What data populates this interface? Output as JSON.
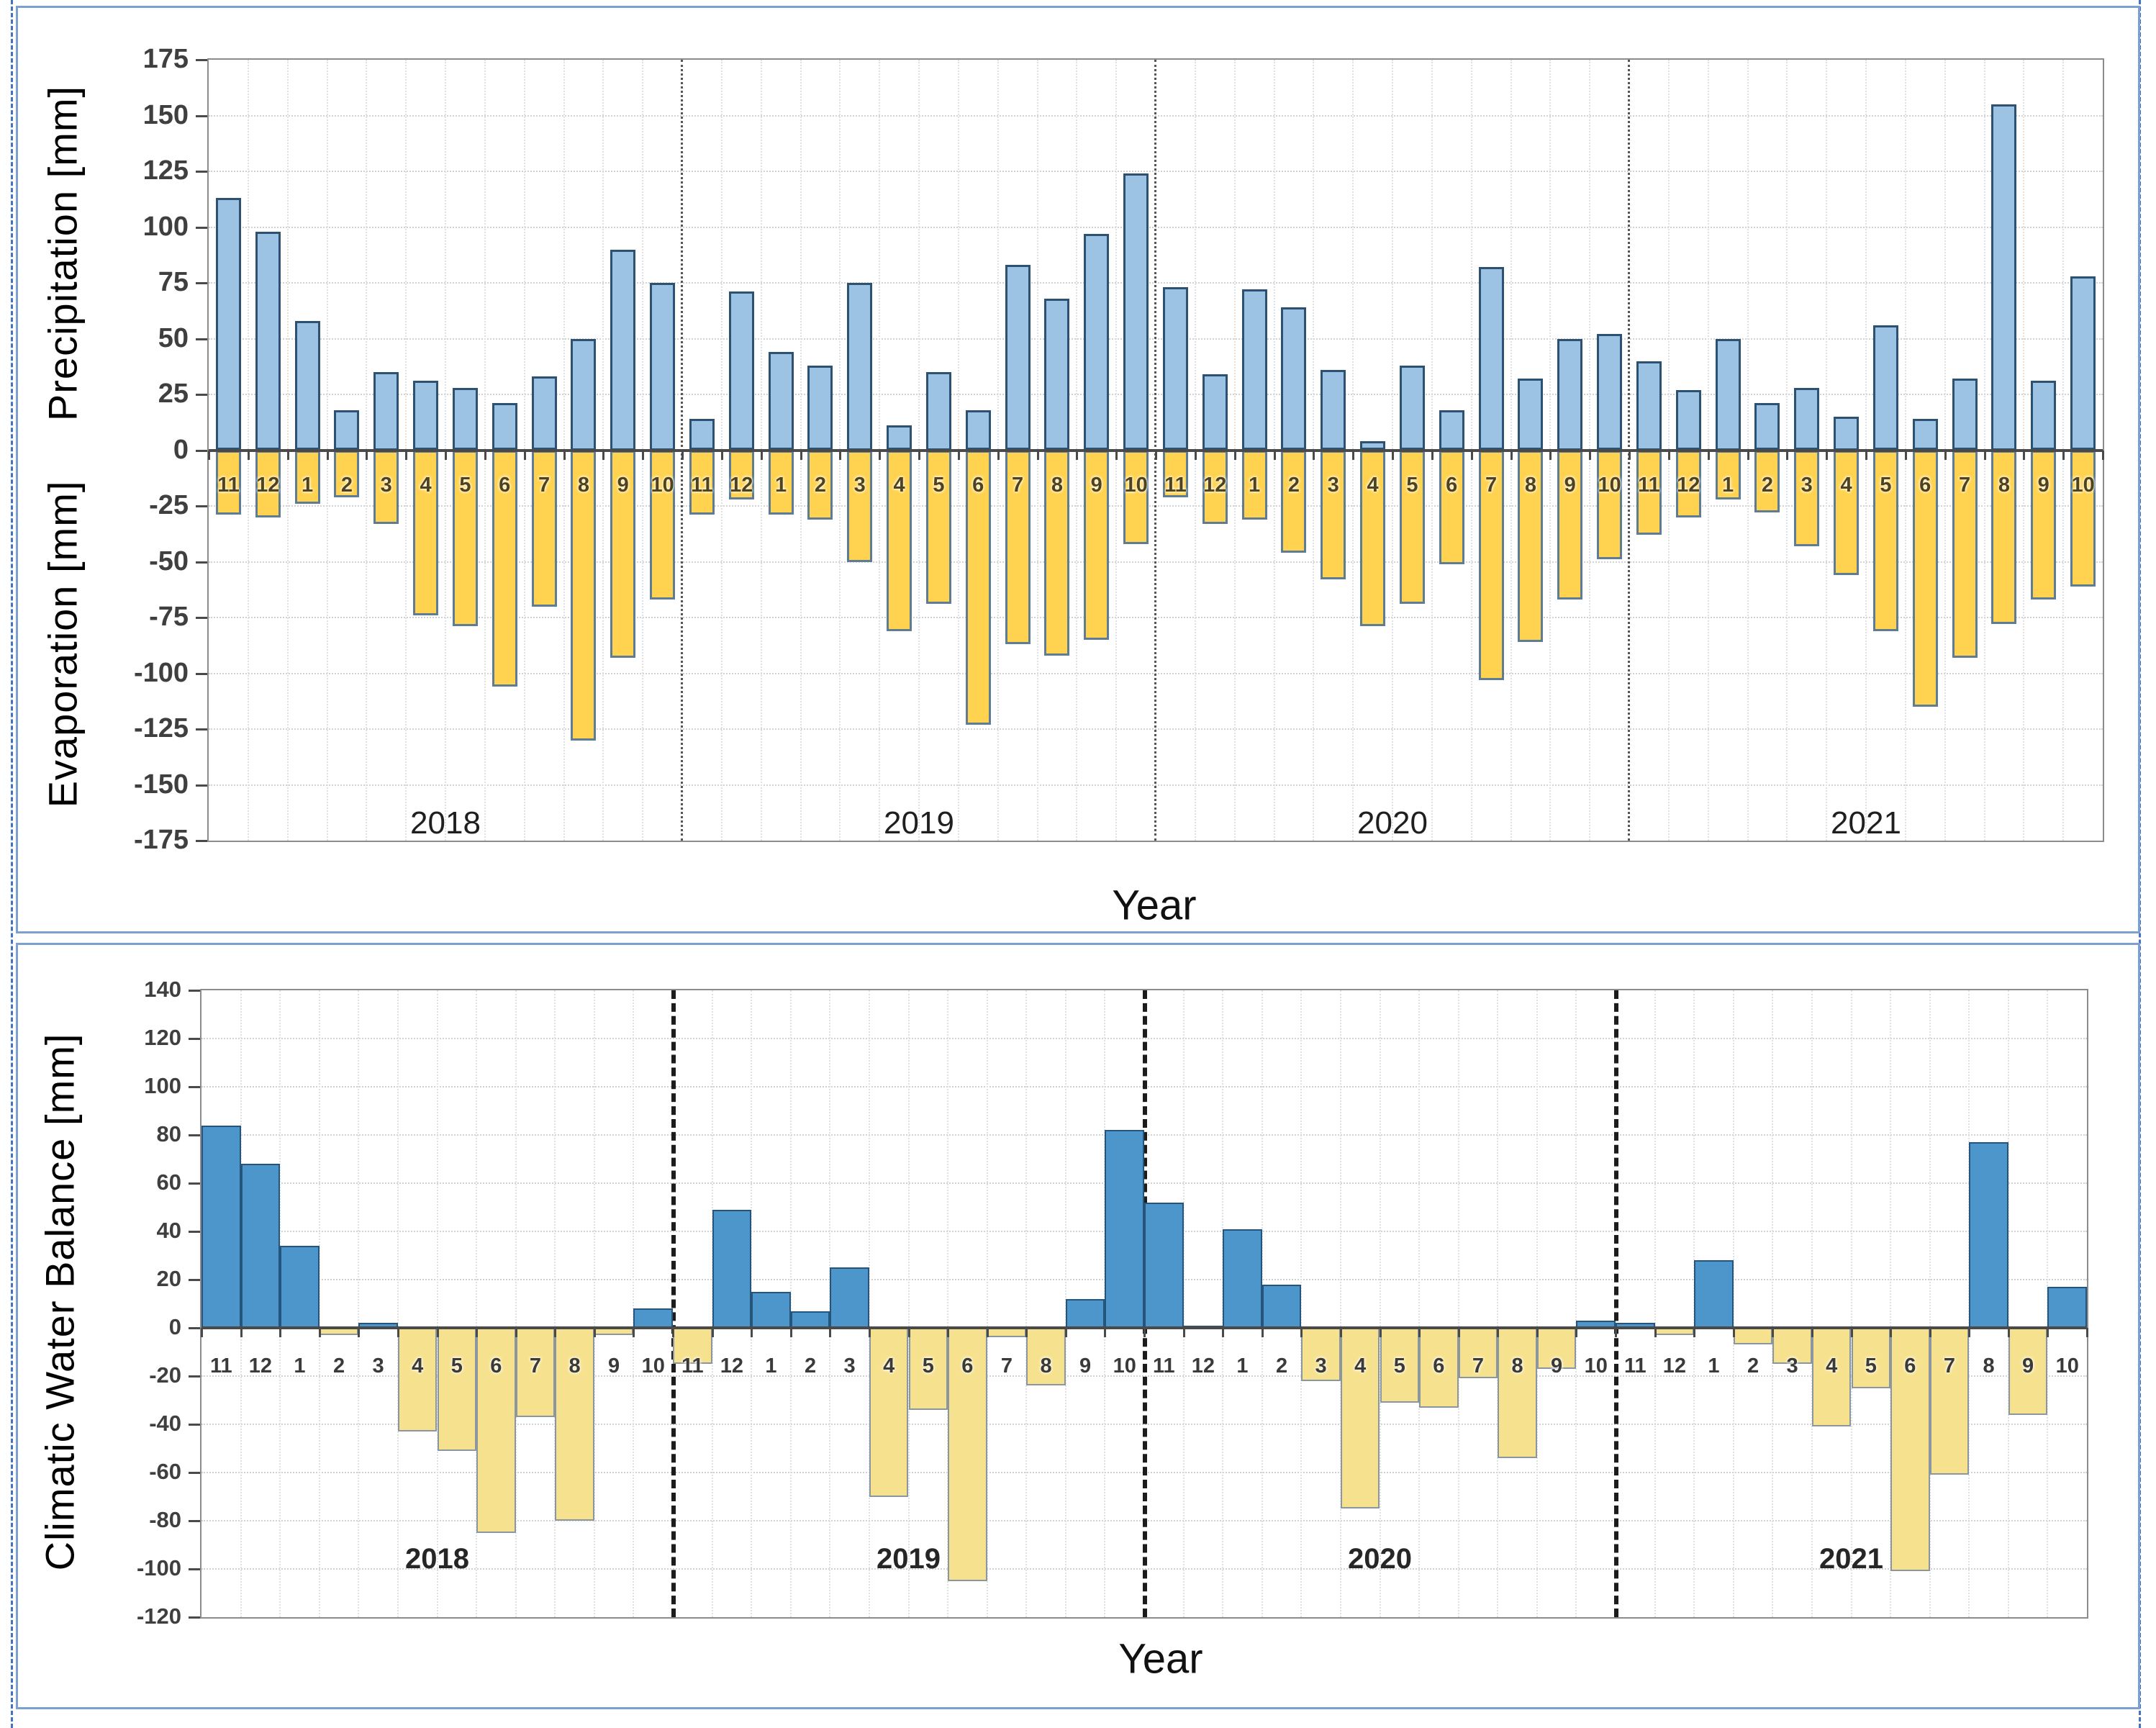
{
  "chart_data": [
    {
      "id": "pe",
      "type": "bar",
      "ylabel_top": "Precipitation [mm]",
      "ylabel_bottom": "Evaporation [mm]",
      "xlabel": "Year",
      "ylim": [
        -175,
        175
      ],
      "ytick_step": 25,
      "grid": true,
      "legend": "none",
      "months": [
        "11",
        "12",
        "1",
        "2",
        "3",
        "4",
        "5",
        "6",
        "7",
        "8",
        "9",
        "10",
        "11",
        "12",
        "1",
        "2",
        "3",
        "4",
        "5",
        "6",
        "7",
        "8",
        "9",
        "10",
        "11",
        "12",
        "1",
        "2",
        "3",
        "4",
        "5",
        "6",
        "7",
        "8",
        "9",
        "10",
        "11",
        "12",
        "1",
        "2",
        "3",
        "4",
        "5",
        "6",
        "7",
        "8",
        "9",
        "10"
      ],
      "years": [
        "2018",
        "2019",
        "2020",
        "2021"
      ],
      "series": [
        {
          "name": "Precipitation",
          "fill": "#9cc3e4",
          "border": "#2d5170",
          "values": [
            113,
            98,
            58,
            18,
            35,
            31,
            28,
            21,
            33,
            50,
            90,
            75,
            14,
            71,
            44,
            38,
            75,
            11,
            35,
            18,
            83,
            68,
            97,
            124,
            73,
            34,
            72,
            64,
            36,
            4,
            38,
            18,
            82,
            32,
            50,
            52,
            40,
            27,
            50,
            21,
            28,
            15,
            56,
            14,
            32,
            155,
            31,
            78
          ]
        },
        {
          "name": "Evaporation",
          "fill": "#ffd34f",
          "border": "#5e7d95",
          "values": [
            -29,
            -30,
            -24,
            -21,
            -33,
            -74,
            -79,
            -106,
            -70,
            -130,
            -93,
            -67,
            -29,
            -22,
            -29,
            -31,
            -50,
            -81,
            -69,
            -123,
            -87,
            -92,
            -85,
            -42,
            -21,
            -33,
            -31,
            -46,
            -58,
            -79,
            -69,
            -51,
            -103,
            -86,
            -67,
            -49,
            -38,
            -30,
            -22,
            -28,
            -43,
            -56,
            -81,
            -115,
            -93,
            -78,
            -67,
            -61
          ]
        }
      ]
    },
    {
      "id": "cwb",
      "type": "bar",
      "ylabel": "Climatic Water Balance [mm]",
      "xlabel": "Year",
      "ylim": [
        -120,
        140
      ],
      "ytick_step": 20,
      "grid": true,
      "legend": "none",
      "months": [
        "11",
        "12",
        "1",
        "2",
        "3",
        "4",
        "5",
        "6",
        "7",
        "8",
        "9",
        "10",
        "11",
        "12",
        "1",
        "2",
        "3",
        "4",
        "5",
        "6",
        "7",
        "8",
        "9",
        "10",
        "11",
        "12",
        "1",
        "2",
        "3",
        "4",
        "5",
        "6",
        "7",
        "8",
        "9",
        "10",
        "11",
        "12",
        "1",
        "2",
        "3",
        "4",
        "5",
        "6",
        "7",
        "8",
        "9",
        "10"
      ],
      "years": [
        "2018",
        "2019",
        "2020",
        "2021"
      ],
      "series": [
        {
          "name": "Climatic Water Balance",
          "fill_positive": "#4d96cb",
          "border_positive": "#25557d",
          "fill_negative": "#f6e28e",
          "border_negative": "#8a97a1",
          "values": [
            84,
            68,
            34,
            -3,
            2,
            -43,
            -51,
            -85,
            -37,
            -80,
            -3,
            8,
            -15,
            49,
            15,
            7,
            25,
            -70,
            -34,
            -105,
            -4,
            -24,
            12,
            82,
            52,
            1,
            41,
            18,
            -22,
            -75,
            -31,
            -33,
            -21,
            -54,
            -17,
            3,
            2,
            -3,
            28,
            -7,
            -15,
            -41,
            -25,
            -101,
            -61,
            77,
            -36,
            17
          ]
        }
      ]
    }
  ],
  "decor": {
    "panel_border_color": "#7ca0cf",
    "page_guide_color": "#4472c4",
    "axis_line_color": "#4a4a4a",
    "gridline_color": "#d2d2d2"
  }
}
